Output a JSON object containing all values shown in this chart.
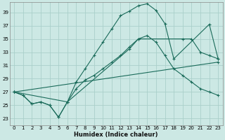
{
  "xlabel": "Humidex (Indice chaleur)",
  "bg_color": "#cce8e4",
  "grid_color": "#aacfca",
  "line_color": "#1a6b5a",
  "xlim": [
    -0.5,
    23.5
  ],
  "ylim": [
    22.0,
    40.5
  ],
  "xticks": [
    0,
    1,
    2,
    3,
    4,
    5,
    6,
    7,
    8,
    9,
    10,
    11,
    12,
    13,
    14,
    15,
    16,
    17,
    18,
    19,
    20,
    21,
    22,
    23
  ],
  "yticks": [
    23,
    25,
    27,
    29,
    31,
    33,
    35,
    37,
    39
  ],
  "lines": [
    {
      "x": [
        0,
        1,
        2,
        3,
        4,
        5,
        6,
        7,
        8,
        9,
        10,
        11,
        12,
        13,
        14,
        15,
        16,
        17,
        18,
        22,
        23
      ],
      "y": [
        27,
        26.5,
        25.2,
        25.5,
        25.0,
        23.2,
        25.5,
        28.5,
        30.5,
        32.5,
        34.5,
        36.5,
        38.5,
        39.2,
        40.0,
        40.3,
        39.3,
        37.3,
        32.0,
        37.2,
        32.0
      ]
    },
    {
      "x": [
        0,
        1,
        2,
        3,
        4,
        5,
        6,
        7,
        8,
        9,
        10,
        11,
        12,
        13,
        14,
        15,
        16,
        17,
        18,
        19,
        20,
        21,
        22,
        23
      ],
      "y": [
        27,
        26.5,
        25.2,
        25.5,
        25.0,
        23.2,
        25.5,
        27.5,
        28.8,
        29.5,
        30.5,
        31.5,
        32.5,
        33.8,
        35.0,
        35.5,
        34.5,
        32.5,
        30.5,
        29.5,
        28.5,
        27.5,
        27.0,
        26.5
      ]
    },
    {
      "x": [
        0,
        23
      ],
      "y": [
        27,
        31.5
      ]
    },
    {
      "x": [
        0,
        6,
        13,
        14,
        19,
        20,
        21,
        22,
        23
      ],
      "y": [
        27,
        25.5,
        33.5,
        35.0,
        35.0,
        35.0,
        33.0,
        32.5,
        32.0
      ]
    }
  ]
}
